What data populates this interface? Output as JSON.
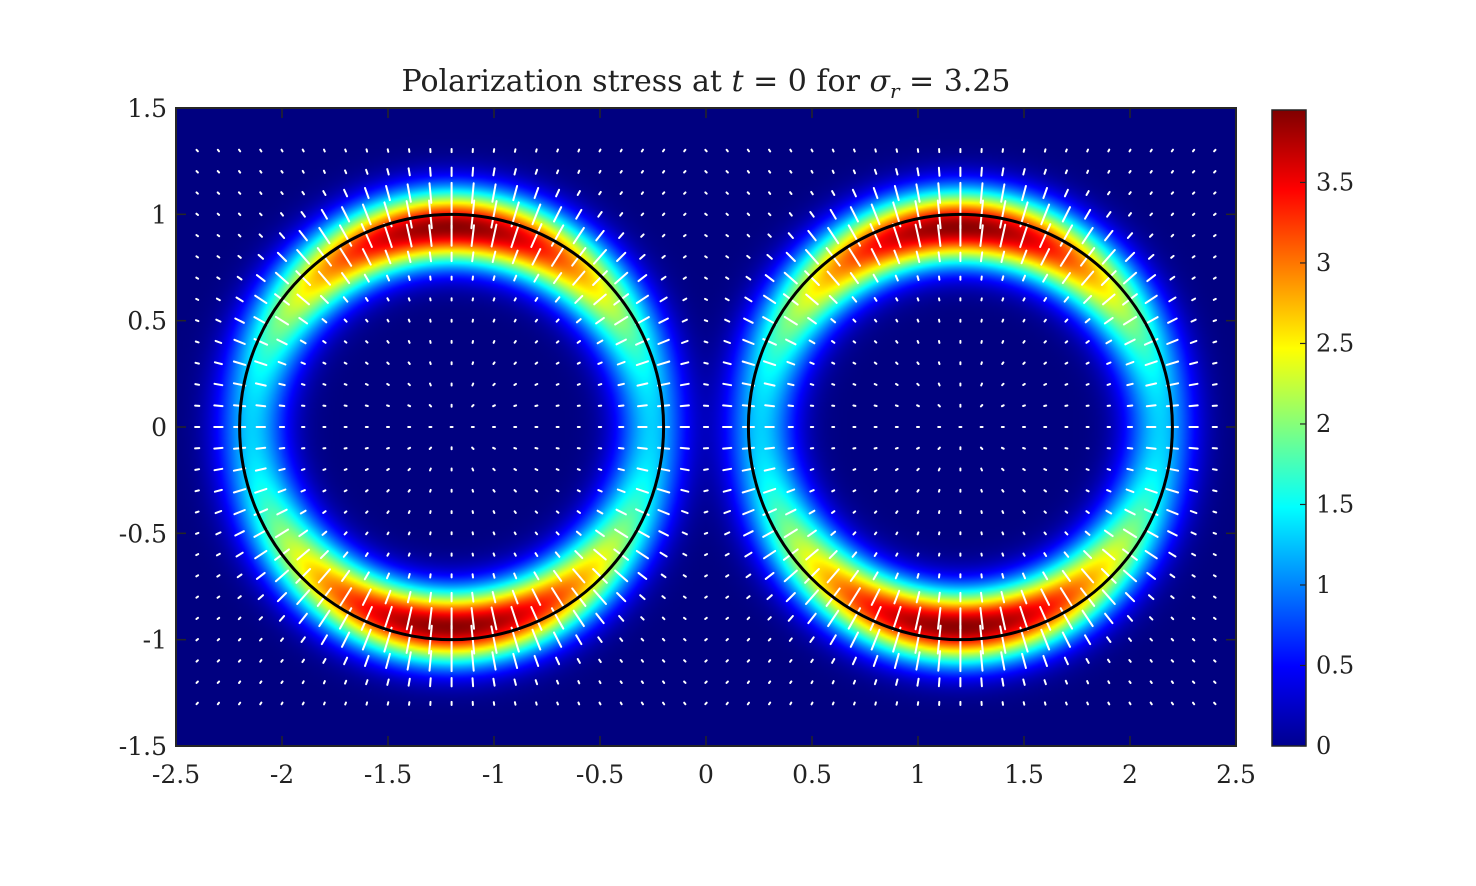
{
  "chart_data": {
    "type": "heatmap",
    "title": "Polarization stress at t = 0 for σr = 3.25",
    "title_parts": {
      "prefix": "Polarization stress at ",
      "t_symbol": "t",
      "eq1": " = 0 for ",
      "sigma": "σ",
      "sigma_sub": "r",
      "eq2": " = 3.25"
    },
    "xlabel": "",
    "ylabel": "",
    "xlim": [
      -2.5,
      2.5
    ],
    "ylim": [
      -1.5,
      1.5
    ],
    "x_ticks": [
      "-2.5",
      "-2",
      "-1.5",
      "-1",
      "-0.5",
      "0",
      "0.5",
      "1",
      "1.5",
      "2",
      "2.5"
    ],
    "y_ticks": [
      "1.5",
      "1",
      "0.5",
      "0",
      "-0.5",
      "-1",
      "-1.5"
    ],
    "colormap": "jet",
    "colorbar": {
      "range": [
        0,
        3.95
      ],
      "ticks": [
        "0",
        "0.5",
        "1",
        "1.5",
        "2",
        "2.5",
        "3",
        "3.5"
      ]
    },
    "drops": [
      {
        "center": [
          -1.2,
          0
        ],
        "radius": 1.0,
        "ring_peak_top": 3.9,
        "ring_peak_side": 1.3
      },
      {
        "center": [
          1.2,
          0
        ],
        "radius": 1.0,
        "ring_peak_top": 3.9,
        "ring_peak_side": 1.3
      }
    ],
    "overlays": {
      "interface_circles": "black",
      "force_vectors": "white quiver, radial, concentrated near interfaces"
    },
    "grid": false
  },
  "colors": {
    "background": "#00008f",
    "interface": "#000000",
    "vectors": "#ffffff",
    "axes": "#262626"
  }
}
